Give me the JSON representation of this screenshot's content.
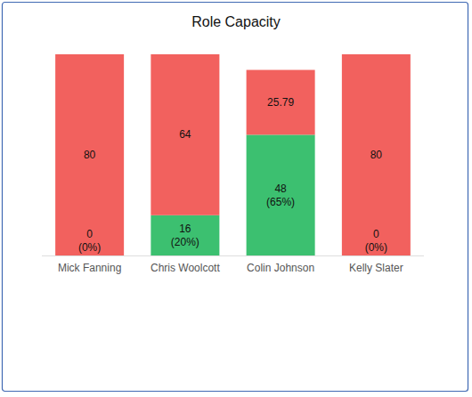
{
  "chart_data": {
    "type": "bar",
    "title": "Role Capacity",
    "categories": [
      "Mick Fanning",
      "Chris Woolcott",
      "Colin Johnson",
      "Kelly Slater"
    ],
    "stacked": true,
    "data_labels": true,
    "tick_labels": "x",
    "grid": false,
    "ylim": [
      0,
      80
    ],
    "series": [
      {
        "color": "#3cc070",
        "values": [
          0,
          16,
          48,
          0
        ],
        "value_labels": [
          "0\n(0%)",
          "16\n(20%)",
          "48\n(65%)",
          "0\n(0%)"
        ]
      },
      {
        "color": "#f2615e",
        "values": [
          80,
          64,
          25.79,
          80
        ]
      }
    ]
  }
}
